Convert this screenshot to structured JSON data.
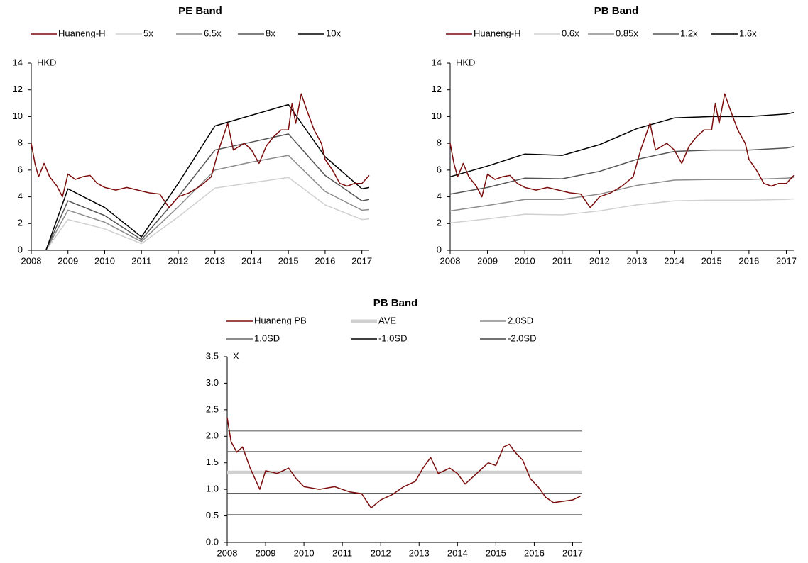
{
  "chart_data": [
    {
      "type": "line",
      "title": "PE Band",
      "unit": "HKD",
      "xlim": [
        2008,
        2017.2
      ],
      "xticks": [
        2008,
        2009,
        2010,
        2011,
        2012,
        2013,
        2014,
        2015,
        2016,
        2017
      ],
      "ylim": [
        0,
        14
      ],
      "yticks": [
        0,
        2,
        4,
        6,
        8,
        10,
        12,
        14
      ],
      "series": [
        {
          "name": "Huaneng-H",
          "color": "#7b0c0c",
          "width": 1.5,
          "x": [
            2008.0,
            2008.1,
            2008.2,
            2008.35,
            2008.5,
            2008.7,
            2008.85,
            2009.0,
            2009.2,
            2009.4,
            2009.6,
            2009.8,
            2010.0,
            2010.3,
            2010.6,
            2010.9,
            2011.2,
            2011.5,
            2011.75,
            2012.0,
            2012.3,
            2012.6,
            2012.9,
            2013.1,
            2013.35,
            2013.5,
            2013.8,
            2014.0,
            2014.2,
            2014.4,
            2014.6,
            2014.8,
            2015.0,
            2015.1,
            2015.2,
            2015.35,
            2015.5,
            2015.7,
            2015.9,
            2016.0,
            2016.2,
            2016.4,
            2016.6,
            2016.8,
            2017.0,
            2017.2
          ],
          "values": [
            8.0,
            6.5,
            5.5,
            6.5,
            5.5,
            4.8,
            4.0,
            5.7,
            5.3,
            5.5,
            5.6,
            5.0,
            4.7,
            4.5,
            4.7,
            4.5,
            4.3,
            4.2,
            3.2,
            4.0,
            4.3,
            4.8,
            5.5,
            7.5,
            9.5,
            7.5,
            8.0,
            7.5,
            6.5,
            7.8,
            8.5,
            9.0,
            9.0,
            11.0,
            9.5,
            11.7,
            10.5,
            9.0,
            8.0,
            6.8,
            6.0,
            5.0,
            4.8,
            5.0,
            5.0,
            5.6
          ]
        },
        {
          "name": "5x",
          "color": "#d0d0d0",
          "width": 1.5,
          "x": [
            2008.4,
            2009,
            2010,
            2011,
            2012,
            2013,
            2014,
            2015,
            2016,
            2017,
            2017.2
          ],
          "values": [
            0,
            2.3,
            1.6,
            0.5,
            2.5,
            4.65,
            5.05,
            5.45,
            3.4,
            2.3,
            2.35
          ]
        },
        {
          "name": "6.5x",
          "color": "#8c8c8c",
          "width": 1.5,
          "x": [
            2008.4,
            2009,
            2010,
            2011,
            2012,
            2013,
            2014,
            2015,
            2016,
            2017,
            2017.2
          ],
          "values": [
            0,
            3.0,
            2.1,
            0.65,
            3.25,
            6.0,
            6.6,
            7.1,
            4.4,
            3.0,
            3.05
          ]
        },
        {
          "name": "8x",
          "color": "#555555",
          "width": 1.5,
          "x": [
            2008.4,
            2009,
            2010,
            2011,
            2012,
            2013,
            2014,
            2015,
            2016,
            2017,
            2017.2
          ],
          "values": [
            0,
            3.7,
            2.6,
            0.8,
            4.0,
            7.5,
            8.1,
            8.7,
            5.6,
            3.7,
            3.8
          ]
        },
        {
          "name": "10x",
          "color": "#000000",
          "width": 1.5,
          "x": [
            2008.4,
            2009,
            2010,
            2011,
            2012,
            2013,
            2014,
            2015,
            2016,
            2017,
            2017.2
          ],
          "values": [
            0,
            4.6,
            3.2,
            1.0,
            5.0,
            9.3,
            10.1,
            10.9,
            7.0,
            4.6,
            4.7
          ]
        }
      ]
    },
    {
      "type": "line",
      "title": "PB Band",
      "unit": "HKD",
      "xlim": [
        2008,
        2017.2
      ],
      "xticks": [
        2008,
        2009,
        2010,
        2011,
        2012,
        2013,
        2014,
        2015,
        2016,
        2017
      ],
      "ylim": [
        0,
        14
      ],
      "yticks": [
        0,
        2,
        4,
        6,
        8,
        10,
        12,
        14
      ],
      "series": [
        {
          "name": "Huaneng-H",
          "color": "#7b0c0c",
          "width": 1.5,
          "x": [
            2008.0,
            2008.1,
            2008.2,
            2008.35,
            2008.5,
            2008.7,
            2008.85,
            2009.0,
            2009.2,
            2009.4,
            2009.6,
            2009.8,
            2010.0,
            2010.3,
            2010.6,
            2010.9,
            2011.2,
            2011.5,
            2011.75,
            2012.0,
            2012.3,
            2012.6,
            2012.9,
            2013.1,
            2013.35,
            2013.5,
            2013.8,
            2014.0,
            2014.2,
            2014.4,
            2014.6,
            2014.8,
            2015.0,
            2015.1,
            2015.2,
            2015.35,
            2015.5,
            2015.7,
            2015.9,
            2016.0,
            2016.2,
            2016.4,
            2016.6,
            2016.8,
            2017.0,
            2017.2
          ],
          "values": [
            8.0,
            6.5,
            5.5,
            6.5,
            5.5,
            4.8,
            4.0,
            5.7,
            5.3,
            5.5,
            5.6,
            5.0,
            4.7,
            4.5,
            4.7,
            4.5,
            4.3,
            4.2,
            3.2,
            4.0,
            4.3,
            4.8,
            5.5,
            7.5,
            9.5,
            7.5,
            8.0,
            7.5,
            6.5,
            7.8,
            8.5,
            9.0,
            9.0,
            11.0,
            9.5,
            11.7,
            10.5,
            9.0,
            8.0,
            6.8,
            6.0,
            5.0,
            4.8,
            5.0,
            5.0,
            5.6
          ]
        },
        {
          "name": "0.6x",
          "color": "#d0d0d0",
          "width": 1.5,
          "x": [
            2008,
            2009,
            2010,
            2011,
            2012,
            2013,
            2014,
            2015,
            2016,
            2017,
            2017.2
          ],
          "values": [
            2.05,
            2.35,
            2.7,
            2.65,
            2.95,
            3.4,
            3.7,
            3.75,
            3.75,
            3.8,
            3.85
          ]
        },
        {
          "name": "0.85x",
          "color": "#8c8c8c",
          "width": 1.5,
          "x": [
            2008,
            2009,
            2010,
            2011,
            2012,
            2013,
            2014,
            2015,
            2016,
            2017,
            2017.2
          ],
          "values": [
            2.95,
            3.35,
            3.8,
            3.8,
            4.2,
            4.85,
            5.25,
            5.3,
            5.3,
            5.4,
            5.45
          ]
        },
        {
          "name": "1.2x",
          "color": "#555555",
          "width": 1.5,
          "x": [
            2008,
            2009,
            2010,
            2011,
            2012,
            2013,
            2014,
            2015,
            2016,
            2017,
            2017.2
          ],
          "values": [
            4.2,
            4.7,
            5.4,
            5.35,
            5.9,
            6.8,
            7.4,
            7.5,
            7.5,
            7.65,
            7.75
          ]
        },
        {
          "name": "1.6x",
          "color": "#000000",
          "width": 1.5,
          "x": [
            2008,
            2009,
            2010,
            2011,
            2012,
            2013,
            2014,
            2015,
            2016,
            2017,
            2017.2
          ],
          "values": [
            5.5,
            6.3,
            7.2,
            7.1,
            7.9,
            9.1,
            9.9,
            10.0,
            10.0,
            10.2,
            10.3
          ]
        }
      ]
    },
    {
      "type": "line",
      "title": "PB Band",
      "unit": "X",
      "xlim": [
        2008,
        2017.25
      ],
      "xticks": [
        2008,
        2009,
        2010,
        2011,
        2012,
        2013,
        2014,
        2015,
        2016,
        2017
      ],
      "ylim": [
        0,
        3.5
      ],
      "yticks": [
        {
          "value": 0,
          "label": "0.0"
        },
        0.5,
        {
          "value": 1,
          "label": "1.0"
        },
        1.5,
        {
          "value": 2,
          "label": "2.0"
        },
        2.5,
        {
          "value": 3,
          "label": "3.0"
        },
        3.5
      ],
      "series": [
        {
          "name": "Huaneng PB",
          "color": "#7b0c0c",
          "width": 1.5,
          "x": [
            2008.0,
            2008.1,
            2008.25,
            2008.4,
            2008.6,
            2008.85,
            2009.0,
            2009.3,
            2009.6,
            2009.8,
            2010.0,
            2010.4,
            2010.8,
            2011.2,
            2011.5,
            2011.75,
            2012.0,
            2012.3,
            2012.6,
            2012.9,
            2013.1,
            2013.3,
            2013.5,
            2013.8,
            2014.0,
            2014.2,
            2014.5,
            2014.8,
            2015.0,
            2015.2,
            2015.35,
            2015.5,
            2015.7,
            2015.9,
            2016.1,
            2016.3,
            2016.5,
            2016.8,
            2017.0,
            2017.2
          ],
          "values": [
            2.35,
            1.9,
            1.7,
            1.8,
            1.4,
            1.0,
            1.35,
            1.3,
            1.4,
            1.2,
            1.05,
            1.0,
            1.05,
            0.95,
            0.92,
            0.65,
            0.8,
            0.9,
            1.05,
            1.15,
            1.4,
            1.6,
            1.3,
            1.4,
            1.3,
            1.1,
            1.3,
            1.5,
            1.45,
            1.8,
            1.85,
            1.7,
            1.55,
            1.2,
            1.05,
            0.85,
            0.75,
            0.78,
            0.8,
            0.87
          ]
        },
        {
          "name": "AVE",
          "color": "#d0d0d0",
          "width": 5,
          "x": [
            2008,
            2017.25
          ],
          "values": [
            1.32,
            1.32
          ]
        },
        {
          "name": "2.0SD",
          "color": "#8c8c8c",
          "width": 1.5,
          "x": [
            2008,
            2017.25
          ],
          "values": [
            2.1,
            2.1
          ]
        },
        {
          "name": "1.0SD",
          "color": "#666666",
          "width": 1.5,
          "x": [
            2008,
            2017.25
          ],
          "values": [
            1.71,
            1.71
          ]
        },
        {
          "name": "-1.0SD",
          "color": "#000000",
          "width": 1.5,
          "x": [
            2008,
            2017.25
          ],
          "values": [
            0.92,
            0.92
          ]
        },
        {
          "name": "-2.0SD",
          "color": "#444444",
          "width": 1.5,
          "x": [
            2008,
            2017.25
          ],
          "values": [
            0.52,
            0.52
          ]
        }
      ]
    }
  ]
}
